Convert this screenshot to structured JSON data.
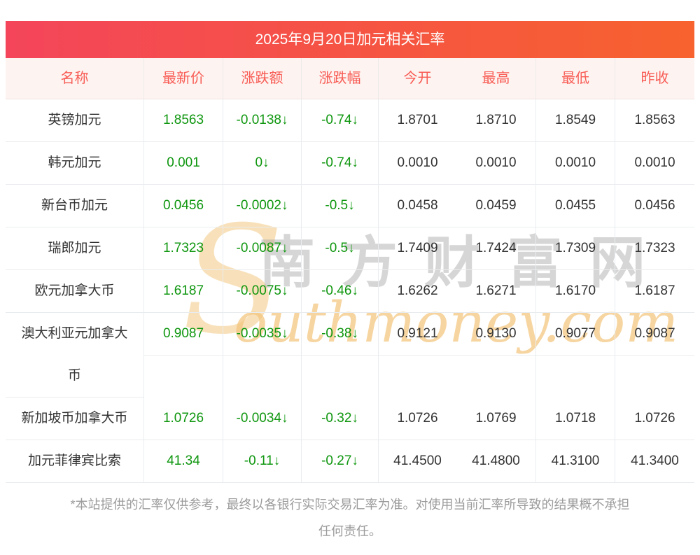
{
  "title": "2025年9月20日加元相关汇率",
  "table": {
    "headers": [
      "名称",
      "最新价",
      "涨跌额",
      "涨跌幅",
      "今开",
      "最高",
      "最低",
      "昨收"
    ],
    "rows": [
      [
        "英镑加元",
        "1.8563",
        "-0.0138↓",
        "-0.74↓",
        "1.8701",
        "1.8710",
        "1.8549",
        "1.8563"
      ],
      [
        "韩元加元",
        "0.001",
        "0↓",
        "-0.74↓",
        "0.0010",
        "0.0010",
        "0.0010",
        "0.0010"
      ],
      [
        "新台币加元",
        "0.0456",
        "-0.0002↓",
        "-0.5↓",
        "0.0458",
        "0.0459",
        "0.0455",
        "0.0456"
      ],
      [
        "瑞郎加元",
        "1.7323",
        "-0.0087↓",
        "-0.5↓",
        "1.7409",
        "1.7424",
        "1.7309",
        "1.7323"
      ],
      [
        "欧元加拿大币",
        "1.6187",
        "-0.0075↓",
        "-0.46↓",
        "1.6262",
        "1.6271",
        "1.6170",
        "1.6187"
      ],
      [
        "澳大利亚元加拿大币",
        "0.9087",
        "-0.0035↓",
        "-0.38↓",
        "0.9121",
        "0.9130",
        "0.9077",
        "0.9087"
      ],
      [
        "新加坡币加拿大币",
        "1.0726",
        "-0.0034↓",
        "-0.32↓",
        "1.0726",
        "1.0769",
        "1.0718",
        "1.0726"
      ],
      [
        "加元菲律宾比索",
        "41.34",
        "-0.11↓",
        "-0.27↓",
        "41.4500",
        "41.4800",
        "41.3100",
        "41.3400"
      ]
    ]
  },
  "watermark": {
    "s": "S",
    "cn": "南方财富网",
    "en": "outhmoney.com"
  },
  "footer": {
    "text": "*本站提供的汇率仅供参考，最终以各银行实际交易汇率为准。对使用当前汇率所导致的结果概不承担任何责任。"
  },
  "colors": {
    "title_gradient_from": "#f4455a",
    "title_gradient_to": "#f7622e",
    "header_bg": "#fdf3f0",
    "header_text": "#f85c55",
    "down_green": "#0e960e",
    "value_text": "#333333",
    "row_border": "#e9ecef",
    "watermark_tan": "#f7dcae",
    "watermark_gray": "#9e9e9e",
    "footer_text": "#9b9b9b"
  }
}
